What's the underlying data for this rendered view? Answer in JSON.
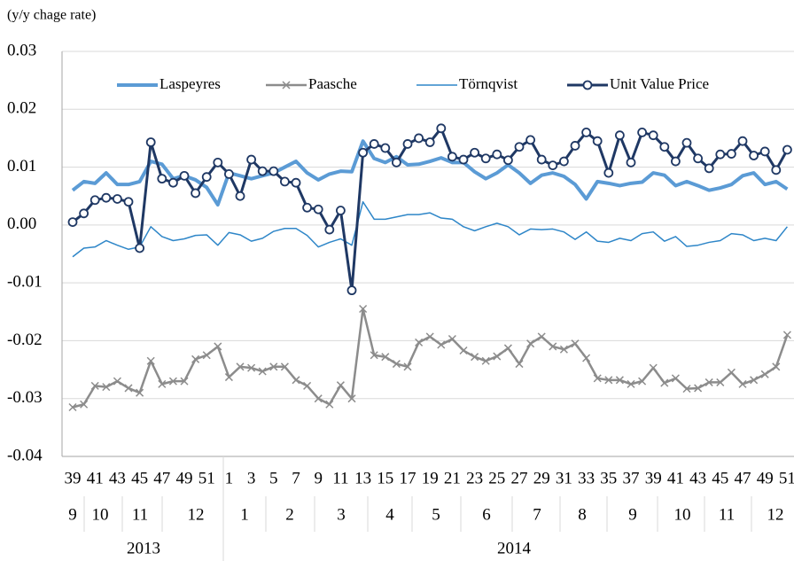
{
  "chart_data": {
    "type": "line",
    "title": "(y/y chage rate)",
    "categories": [
      "39",
      null,
      "41",
      null,
      "43",
      null,
      "45",
      null,
      "47",
      null,
      "49",
      null,
      "51",
      null,
      "1",
      null,
      "3",
      null,
      "5",
      null,
      "7",
      null,
      "9",
      null,
      "11",
      null,
      "13",
      null,
      "15",
      null,
      "17",
      null,
      "19",
      null,
      "21",
      null,
      "23",
      null,
      "25",
      null,
      "27",
      null,
      "29",
      null,
      "31",
      null,
      "33",
      null,
      "35",
      null,
      "37",
      null,
      "39",
      null,
      "41",
      null,
      "43",
      null,
      "45",
      null,
      "47",
      null,
      "49",
      null,
      "51"
    ],
    "months": [
      "9",
      "10",
      "11",
      "12",
      "1",
      "2",
      "3",
      "4",
      "5",
      "6",
      "7",
      "8",
      "9",
      "10",
      "11",
      "12"
    ],
    "years": [
      "2013",
      "2014"
    ],
    "ylim": [
      -0.04,
      0.03
    ],
    "yticks": [
      -0.04,
      -0.03,
      -0.02,
      -0.01,
      {
        "value": 0,
        "label": "0.00"
      },
      0.01,
      0.02,
      0.03
    ],
    "grid": true,
    "legend": "top",
    "series": [
      {
        "name": "Laspeyres",
        "color": "#5b9bd5",
        "marker": "none",
        "values": [
          0.006,
          0.0075,
          0.0072,
          0.009,
          0.007,
          0.007,
          0.0075,
          0.011,
          0.0105,
          0.008,
          0.0085,
          0.0078,
          0.0065,
          0.0035,
          0.009,
          0.0085,
          0.008,
          0.0085,
          0.009,
          0.01,
          0.011,
          0.009,
          0.0078,
          0.0088,
          0.0093,
          0.0092,
          0.0145,
          0.0115,
          0.0108,
          0.0118,
          0.0104,
          0.0105,
          0.011,
          0.0116,
          0.0108,
          0.0108,
          0.0092,
          0.008,
          0.009,
          0.0104,
          0.009,
          0.0072,
          0.0086,
          0.009,
          0.0084,
          0.007,
          0.0045,
          0.0075,
          0.0072,
          0.0068,
          0.0072,
          0.0074,
          0.009,
          0.0086,
          0.0068,
          0.0075,
          0.0068,
          0.006,
          0.0064,
          0.007,
          0.0085,
          0.009,
          0.007,
          0.0075,
          0.0062
        ]
      },
      {
        "name": "Paasche",
        "color": "#8c8c8c",
        "marker": "x",
        "values": [
          -0.0315,
          -0.031,
          -0.0278,
          -0.028,
          -0.027,
          -0.0282,
          -0.029,
          -0.0235,
          -0.0275,
          -0.027,
          -0.027,
          -0.0232,
          -0.0225,
          -0.021,
          -0.0263,
          -0.0245,
          -0.0247,
          -0.0253,
          -0.0245,
          -0.0245,
          -0.0268,
          -0.0278,
          -0.03,
          -0.031,
          -0.0277,
          -0.03,
          -0.0145,
          -0.0225,
          -0.0228,
          -0.024,
          -0.0245,
          -0.0203,
          -0.0193,
          -0.0207,
          -0.0197,
          -0.0217,
          -0.0228,
          -0.0235,
          -0.0227,
          -0.0213,
          -0.024,
          -0.0205,
          -0.0193,
          -0.021,
          -0.0215,
          -0.0205,
          -0.023,
          -0.0265,
          -0.0268,
          -0.0268,
          -0.0275,
          -0.027,
          -0.0247,
          -0.0273,
          -0.0265,
          -0.0283,
          -0.0282,
          -0.0272,
          -0.0272,
          -0.0255,
          -0.0275,
          -0.0268,
          -0.0258,
          -0.0245,
          -0.019
        ]
      },
      {
        "name": "Törnqvist",
        "color": "#2e86c8",
        "marker": "none",
        "values": [
          -0.0055,
          -0.004,
          -0.0038,
          -0.0027,
          -0.0035,
          -0.0042,
          -0.0038,
          -0.0003,
          -0.002,
          -0.0027,
          -0.0024,
          -0.0018,
          -0.0017,
          -0.0035,
          -0.0013,
          -0.0017,
          -0.0028,
          -0.0023,
          -0.0011,
          -0.0006,
          -0.0006,
          -0.0018,
          -0.0038,
          -0.003,
          -0.0024,
          -0.0035,
          0.004,
          0.001,
          0.001,
          0.0014,
          0.0018,
          0.0018,
          0.0021,
          0.0012,
          0.001,
          -0.0003,
          -0.001,
          -0.0003,
          0.0003,
          -0.0003,
          -0.0017,
          -0.0007,
          -0.0008,
          -0.0007,
          -0.0012,
          -0.0025,
          -0.0012,
          -0.0028,
          -0.003,
          -0.0023,
          -0.0027,
          -0.0015,
          -0.0012,
          -0.0028,
          -0.002,
          -0.0037,
          -0.0035,
          -0.003,
          -0.0027,
          -0.0015,
          -0.0017,
          -0.0027,
          -0.0023,
          -0.0027,
          -0.0003
        ]
      },
      {
        "name": "Unit Value Price",
        "color": "#1f3864",
        "marker": "circle",
        "values": [
          0.0005,
          0.002,
          0.0043,
          0.0047,
          0.0045,
          0.004,
          -0.004,
          0.0143,
          0.008,
          0.0073,
          0.0085,
          0.0055,
          0.0083,
          0.0108,
          0.0088,
          0.005,
          0.0113,
          0.0093,
          0.0093,
          0.0075,
          0.0073,
          0.003,
          0.0027,
          -0.0008,
          0.0025,
          -0.0113,
          0.0125,
          0.014,
          0.0133,
          0.0108,
          0.014,
          0.015,
          0.0143,
          0.0167,
          0.0118,
          0.0113,
          0.0125,
          0.0115,
          0.0122,
          0.0112,
          0.0135,
          0.0147,
          0.0113,
          0.0103,
          0.011,
          0.0137,
          0.016,
          0.0145,
          0.009,
          0.0155,
          0.0108,
          0.016,
          0.0155,
          0.0135,
          0.011,
          0.0142,
          0.0115,
          0.0098,
          0.0122,
          0.0123,
          0.0145,
          0.012,
          0.0127,
          0.0095,
          0.013
        ]
      }
    ]
  }
}
